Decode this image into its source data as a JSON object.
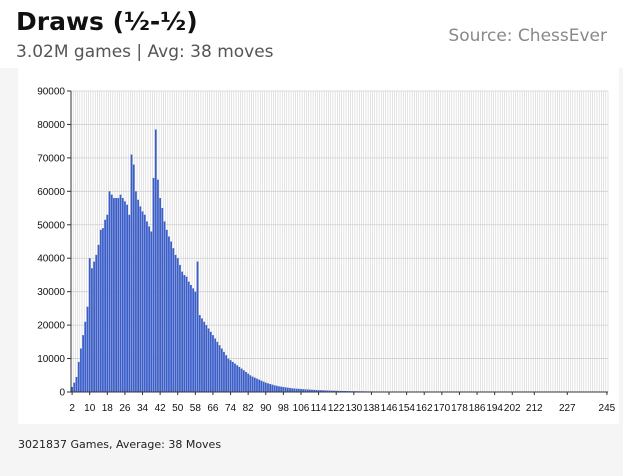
{
  "header": {
    "title": "Draws (½-½)",
    "subtitle": "3.02M games | Avg: 38 moves",
    "source": "Source: ChessEver"
  },
  "footer": {
    "text": "3021837 Games, Average: 38 Moves"
  },
  "colors": {
    "bar": "#3a5fcd",
    "grid": "#d0d0d0"
  },
  "chart_data": {
    "type": "bar",
    "title": "",
    "xlabel": "",
    "ylabel": "",
    "ylim": [
      0,
      90000
    ],
    "yticks": [
      0,
      10000,
      20000,
      30000,
      40000,
      50000,
      60000,
      70000,
      80000,
      90000
    ],
    "xticks": [
      2,
      10,
      18,
      26,
      34,
      42,
      50,
      58,
      66,
      74,
      82,
      90,
      98,
      106,
      114,
      122,
      130,
      138,
      146,
      154,
      162,
      170,
      178,
      186,
      194,
      202,
      212,
      227,
      245
    ],
    "grid": true,
    "x_start": 2,
    "x_end": 245,
    "values": [
      1500,
      2800,
      4500,
      9000,
      13000,
      17000,
      21000,
      25500,
      40000,
      37000,
      39000,
      41000,
      44000,
      48500,
      49000,
      51500,
      53000,
      60000,
      59000,
      58000,
      58000,
      58000,
      59000,
      58000,
      57000,
      56000,
      53000,
      71000,
      68000,
      60000,
      57500,
      55500,
      54000,
      53000,
      51000,
      49500,
      48000,
      64000,
      78500,
      63500,
      58000,
      55000,
      51000,
      48500,
      46500,
      45000,
      43000,
      41000,
      40000,
      38000,
      36000,
      35000,
      34500,
      33000,
      32000,
      31000,
      30000,
      39000,
      23000,
      22000,
      21000,
      20000,
      19000,
      18000,
      17000,
      16000,
      15000,
      14000,
      13000,
      12000,
      11000,
      10000,
      9500,
      9000,
      8500,
      8000,
      7500,
      7000,
      6500,
      6000,
      5500,
      5000,
      4600,
      4300,
      4000,
      3700,
      3400,
      3100,
      2800,
      2600,
      2400,
      2200,
      2000,
      1850,
      1700,
      1600,
      1500,
      1400,
      1300,
      1200,
      1100,
      1050,
      1000,
      950,
      900,
      850,
      800,
      760,
      720,
      680,
      640,
      600,
      570,
      540,
      510,
      480,
      450,
      430,
      410,
      390,
      370,
      350,
      330,
      310,
      295,
      280,
      265,
      250,
      240,
      230,
      220,
      210,
      200,
      190,
      180,
      172,
      164,
      156,
      148,
      140,
      134,
      128,
      122,
      116,
      110,
      105,
      100,
      96,
      92,
      88,
      84,
      80,
      76,
      72,
      69,
      66,
      63,
      60,
      57,
      54,
      52,
      50,
      48,
      46,
      44,
      42,
      40,
      38,
      36,
      35,
      34,
      33,
      32,
      31,
      30,
      29,
      28,
      27,
      26,
      25,
      24,
      23,
      22,
      21,
      20,
      20,
      19,
      19,
      18,
      18,
      17,
      17,
      16,
      16,
      15,
      15,
      14,
      14,
      13,
      13,
      12,
      12,
      12,
      11,
      11,
      11,
      10,
      10,
      10,
      9,
      9,
      9,
      8,
      8,
      8,
      8,
      7,
      7,
      7,
      7,
      6,
      6,
      6,
      6,
      6,
      5,
      5,
      5,
      5,
      5,
      4,
      4,
      4,
      4,
      4,
      4,
      3,
      3,
      3,
      3,
      3,
      3,
      3,
      2,
      2,
      2,
      2,
      2,
      2,
      2,
      2,
      2,
      1,
      1,
      1,
      1,
      1,
      1,
      1,
      1
    ]
  }
}
